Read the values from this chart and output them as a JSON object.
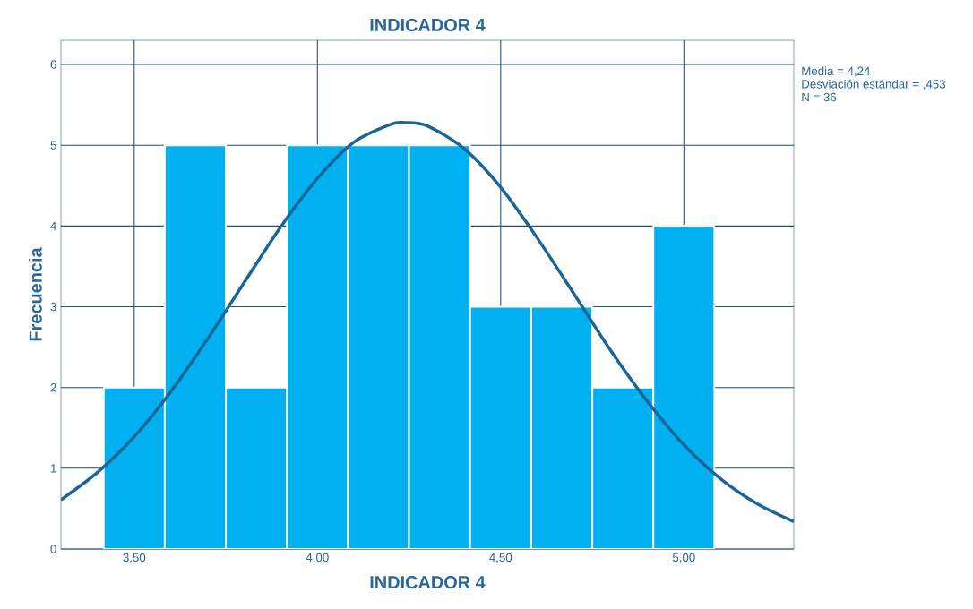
{
  "chart_data": {
    "type": "histogram",
    "title": "INDICADOR 4",
    "xlabel": "INDICADOR 4",
    "ylabel": "Frecuencia",
    "bins": [
      3.4167,
      3.5833,
      3.75,
      3.9167,
      4.0833,
      4.25,
      4.4167,
      4.5833,
      4.75,
      4.9167,
      5.0833
    ],
    "values": [
      2,
      5,
      2,
      5,
      5,
      5,
      3,
      3,
      2,
      4
    ],
    "color": "#00b0f0",
    "series": [
      {
        "type": "line",
        "color": "#1a6496",
        "x": [
          3.3,
          3.4,
          3.5,
          3.6,
          3.7,
          3.8,
          3.9,
          4.0,
          4.1,
          4.2,
          4.24,
          4.3,
          4.4,
          4.5,
          4.6,
          4.7,
          4.8,
          4.9,
          5.0,
          5.1,
          5.2,
          5.3
        ],
        "values": [
          0.61,
          0.95,
          1.39,
          1.95,
          2.6,
          3.3,
          3.99,
          4.59,
          5.04,
          5.26,
          5.28,
          5.24,
          4.96,
          4.48,
          3.85,
          3.16,
          2.46,
          1.83,
          1.29,
          0.87,
          0.56,
          0.34
        ]
      }
    ],
    "xlim": [
      3.3,
      5.3
    ],
    "ylim": [
      0,
      6.3
    ],
    "xticks": [
      {
        "value": 3.5,
        "label": "3,50"
      },
      {
        "value": 4.0,
        "label": "4,00"
      },
      {
        "value": 4.5,
        "label": "4,50"
      },
      {
        "value": 5.0,
        "label": "5,00"
      }
    ],
    "yticks": [
      0,
      1,
      2,
      3,
      4,
      5,
      6
    ],
    "grid": true,
    "annotations": [
      "Media = 4,24",
      "Desviación estándar = ,453",
      "N = 36"
    ]
  }
}
